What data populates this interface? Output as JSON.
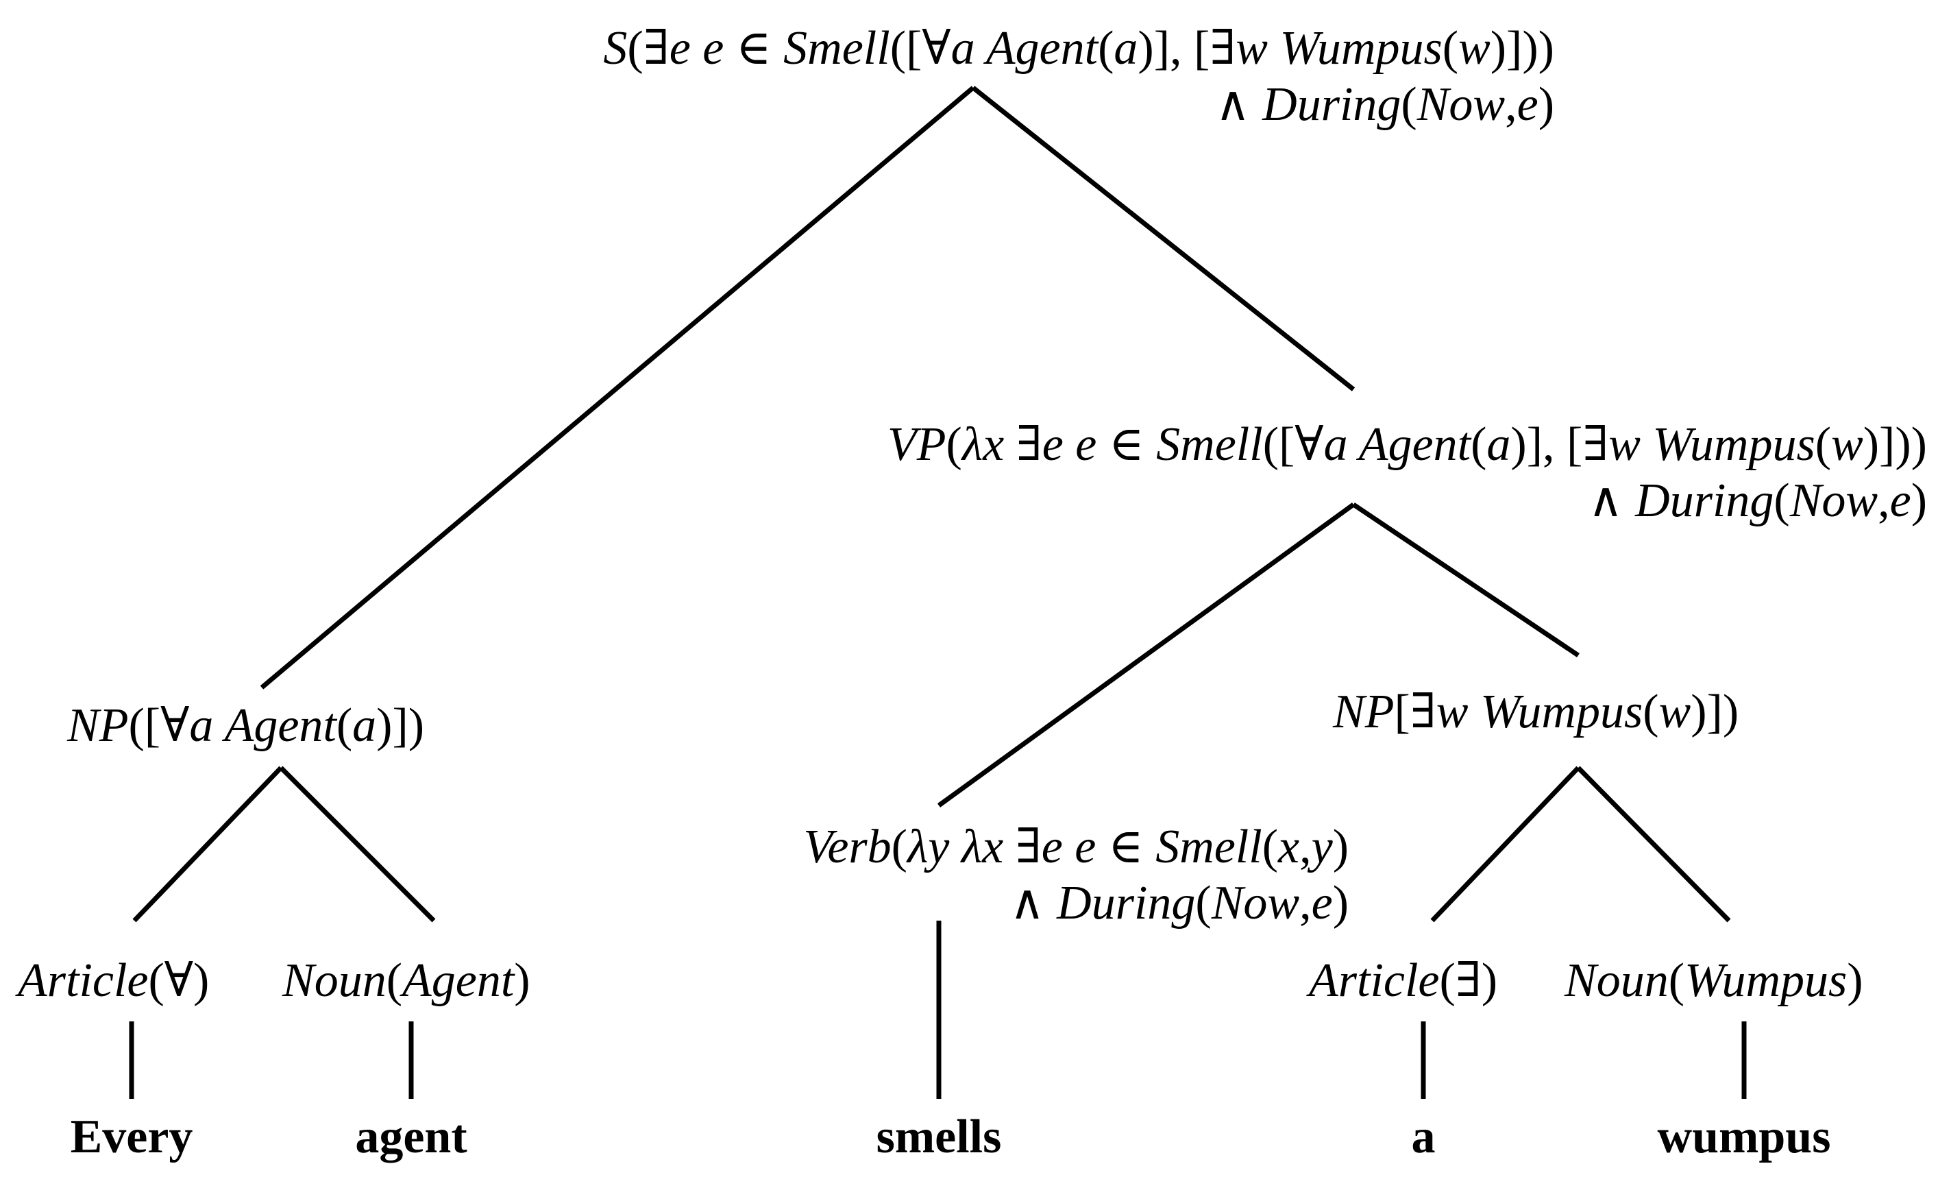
{
  "nodes": {
    "s": {
      "line1": {
        "p1": "S",
        "p2": "(∃",
        "p3": "e e",
        "p4": " ∈ ",
        "p5": "Smell",
        "p6": "([∀",
        "p7": "a Agent",
        "p8": "(",
        "p9": "a",
        "p10": ")], [∃",
        "p11": "w Wumpus",
        "p12": "(",
        "p13": "w",
        "p14": ")]))"
      },
      "line2": {
        "p1": "∧ ",
        "p2": "During",
        "p3": "(",
        "p4": "Now",
        "p5": ",",
        "p6": "e",
        "p7": ")"
      }
    },
    "vp": {
      "line1": {
        "p1": "VP",
        "p2": "(",
        "p3": "λx",
        "p4": " ∃",
        "p5": "e e",
        "p6": " ∈ ",
        "p7": "Smell",
        "p8": "([∀",
        "p9": "a Agent",
        "p10": "(",
        "p11": "a",
        "p12": ")], [∃",
        "p13": "w Wumpus",
        "p14": "(",
        "p15": "w",
        "p16": ")]))"
      },
      "line2": {
        "p1": "∧ ",
        "p2": "During",
        "p3": "(",
        "p4": "Now",
        "p5": ",",
        "p6": "e",
        "p7": ")"
      }
    },
    "np1": {
      "p1": "NP",
      "p2": "([∀",
      "p3": "a Agent",
      "p4": "(",
      "p5": "a",
      "p6": ")])"
    },
    "np2": {
      "p1": "NP",
      "p2": "[∃",
      "p3": "w Wumpus",
      "p4": "(",
      "p5": "w",
      "p6": ")])"
    },
    "verb": {
      "line1": {
        "p1": "Verb",
        "p2": "(",
        "p3": "λy λx",
        "p4": " ∃",
        "p5": "e e",
        "p6": " ∈ ",
        "p7": "Smell",
        "p8": "(",
        "p9": "x",
        "p10": ",",
        "p11": "y",
        "p12": ")"
      },
      "line2": {
        "p1": "∧ ",
        "p2": "During",
        "p3": "(",
        "p4": "Now",
        "p5": ",",
        "p6": "e",
        "p7": ")"
      }
    },
    "article1": {
      "p1": "Article",
      "p2": "(∀)"
    },
    "noun1": {
      "p1": "Noun",
      "p2": "(",
      "p3": "Agent",
      "p4": ")"
    },
    "article2": {
      "p1": "Article",
      "p2": "(∃)"
    },
    "noun2": {
      "p1": "Noun",
      "p2": "(",
      "p3": "Wumpus",
      "p4": ")"
    }
  },
  "words": [
    "Every",
    "agent",
    "smells",
    "a",
    "wumpus"
  ]
}
